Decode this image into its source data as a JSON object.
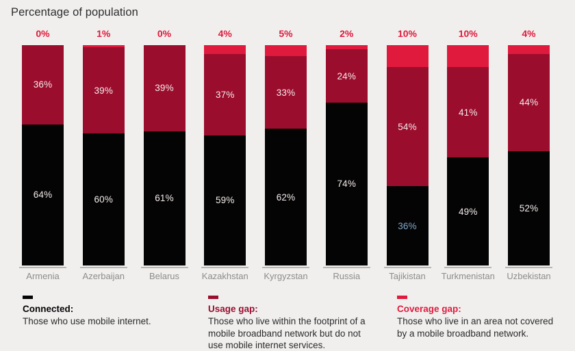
{
  "title": "Percentage of population",
  "colors": {
    "background": "#F0EFEE",
    "title_text": "#2D2D2D",
    "connected": "#050404",
    "usage_gap": "#9B0D2D",
    "coverage_gap": "#E01A3C",
    "bar_value_label": "#F3ECEC",
    "coverage_value_label": "#E01A3C",
    "country_label": "#8D8C8B",
    "baseline": "#B9B7B5",
    "legend_text": "#2B2B2B"
  },
  "chart_data": {
    "type": "bar",
    "stacked": true,
    "unit": "%",
    "ylim": [
      0,
      100
    ],
    "grid": false,
    "legend_position": "bottom",
    "title": "Percentage of population",
    "categories": [
      "Armenia",
      "Azerbaijan",
      "Belarus",
      "Kazakhstan",
      "Kyrgyzstan",
      "Russia",
      "Tajikistan",
      "Turkmenistan",
      "Uzbekistan"
    ],
    "stack_order": "bottom-to-top",
    "series": [
      {
        "name": "Connected",
        "color_key": "connected",
        "show_value_labels_inside": true,
        "labels_above_bars": false,
        "values": [
          64,
          60,
          61,
          59,
          62,
          74,
          36,
          49,
          52
        ]
      },
      {
        "name": "Usage gap",
        "color_key": "usage_gap",
        "show_value_labels_inside": true,
        "labels_above_bars": false,
        "values": [
          36,
          39,
          39,
          37,
          33,
          24,
          54,
          41,
          44
        ]
      },
      {
        "name": "Coverage gap",
        "color_key": "coverage_gap",
        "show_value_labels_inside": false,
        "labels_above_bars": true,
        "values": [
          0,
          1,
          0,
          4,
          5,
          2,
          10,
          10,
          4
        ]
      }
    ],
    "labels_above_bars": [
      "0%",
      "1%",
      "0%",
      "4%",
      "5%",
      "2%",
      "10%",
      "10%",
      "4%"
    ],
    "value_label_overrides": {
      "Tajikistan": {
        "Connected": "#7FA9CE"
      }
    }
  },
  "legend": {
    "items": [
      {
        "label": "Connected:",
        "color": "#050404",
        "description": "Those who use mobile internet."
      },
      {
        "label": "Usage gap:",
        "color": "#9B0D2D",
        "description": "Those who live within the footprint of a mobile broadband network but do not use mobile internet services."
      },
      {
        "label": "Coverage gap:",
        "color": "#E01A3C",
        "description": "Those who live in an area not covered by a mobile broadband network."
      }
    ]
  }
}
